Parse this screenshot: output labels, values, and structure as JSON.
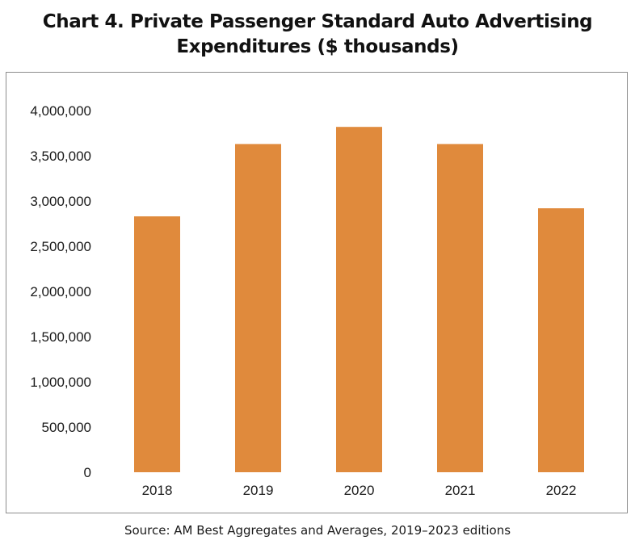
{
  "chart_data": {
    "type": "bar",
    "title_line1": "Chart 4. Private Passenger Standard Auto Advertising",
    "title_line2": "Expenditures ($ thousands)",
    "xlabel": "",
    "ylabel": "",
    "categories": [
      "2018",
      "2019",
      "2020",
      "2021",
      "2022"
    ],
    "values": [
      2830000,
      3630000,
      3820000,
      3630000,
      2920000
    ],
    "ylim": [
      0,
      4000000
    ],
    "yticks": [
      0,
      500000,
      1000000,
      1500000,
      2000000,
      2500000,
      3000000,
      3500000,
      4000000
    ],
    "ytick_labels": [
      "0",
      "500,000",
      "1,000,000",
      "1,500,000",
      "2,000,000",
      "2,500,000",
      "3,000,000",
      "3,500,000",
      "4,000,000"
    ],
    "grid": false,
    "legend": "none",
    "bar_color": "#e08a3c"
  },
  "source": "Source: AM Best Aggregates and Averages, 2019–2023 editions"
}
